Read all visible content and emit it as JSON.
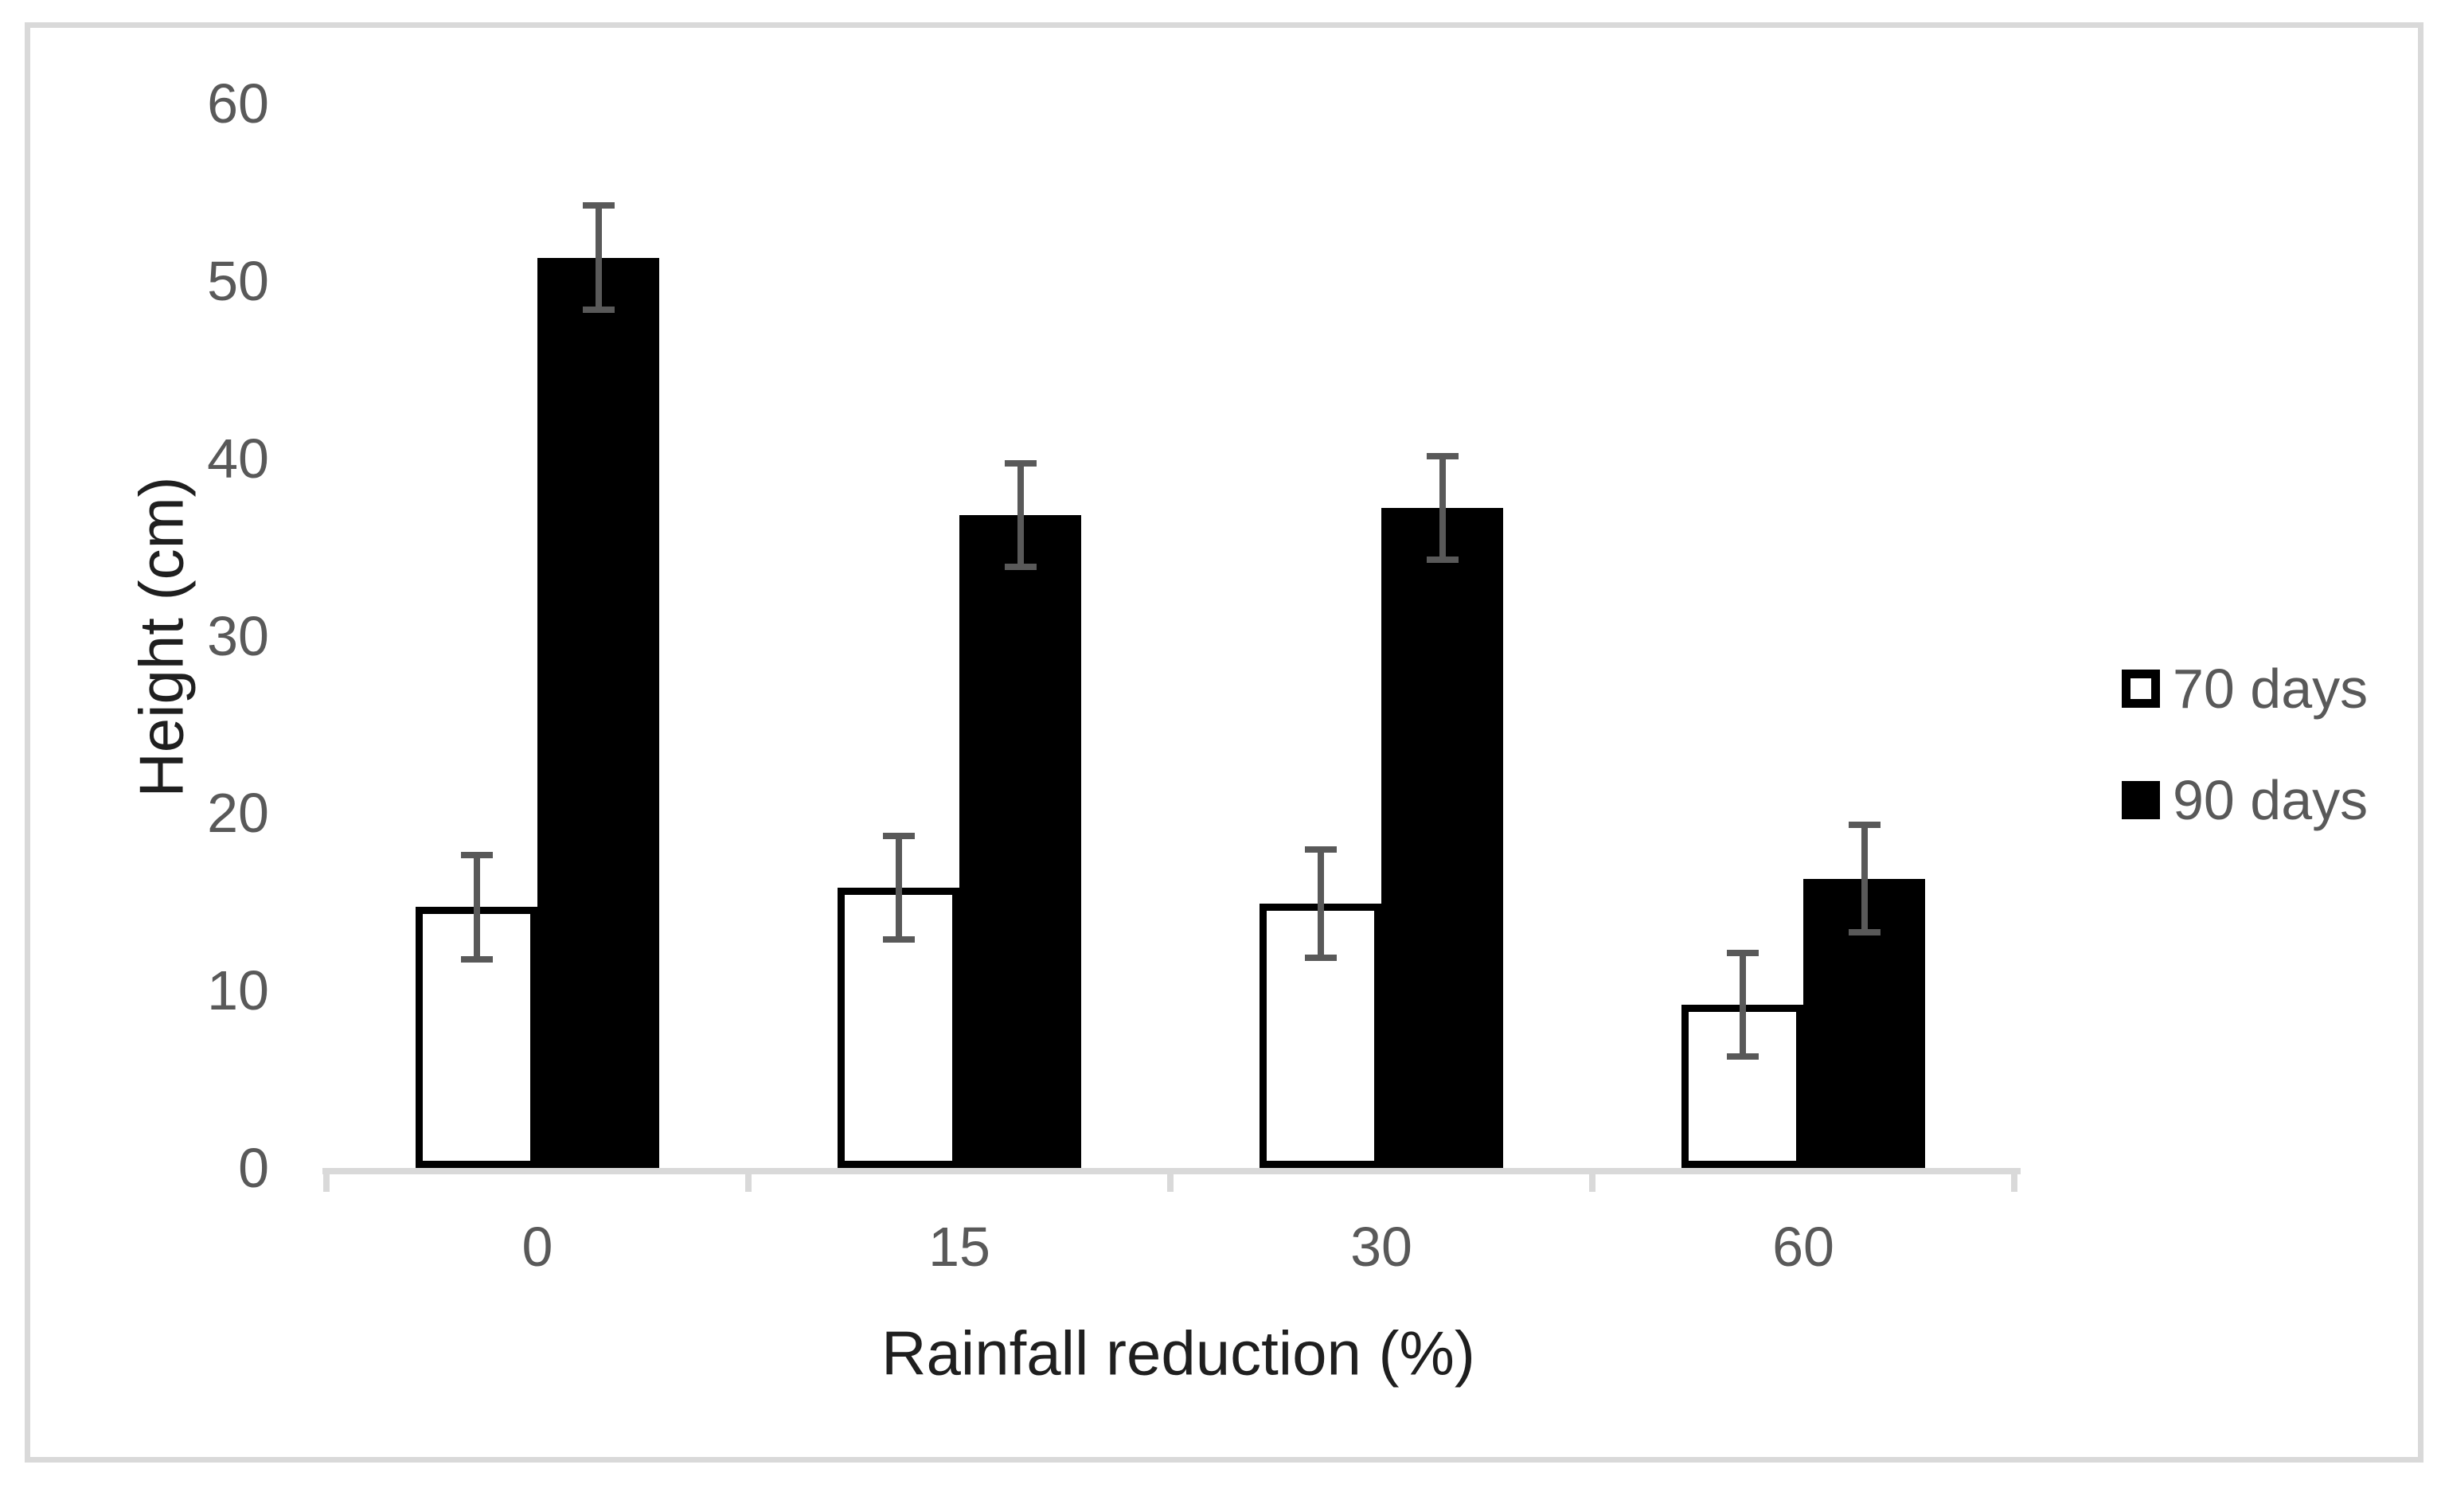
{
  "chart_data": {
    "type": "bar",
    "title": "",
    "categories": [
      "0",
      "15",
      "30",
      "60"
    ],
    "series": [
      {
        "name": "70 days",
        "fill": "#ffffff",
        "outline": "#000000",
        "values": [
          14.7,
          15.8,
          14.9,
          9.2
        ],
        "errors": [
          2.8,
          2.8,
          2.9,
          2.8
        ]
      },
      {
        "name": "90 days",
        "fill": "#000000",
        "outline": "#000000",
        "values": [
          51.3,
          36.8,
          37.2,
          16.3
        ],
        "errors": [
          2.8,
          2.8,
          2.8,
          2.9
        ]
      }
    ],
    "xlabel": "Rainfall reduction (%)",
    "ylabel": "Height (cm)",
    "ylim": [
      0,
      60
    ],
    "yticks": [
      0,
      10,
      20,
      30,
      40,
      50,
      60
    ],
    "grid": false,
    "legend_position": "right",
    "error_bar_color": "#595959",
    "axis_line_color": "#d9d9d9",
    "tick_label_color": "#595959",
    "axis_title_color": "#1f1f1f",
    "frame_border_color": "#d9d9d9"
  }
}
